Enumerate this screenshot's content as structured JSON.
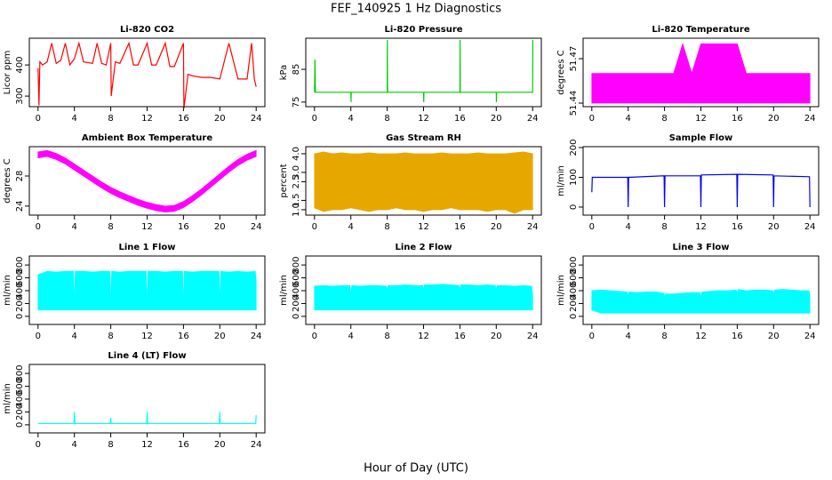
{
  "title": "FEF_140925 1 Hz Diagnostics",
  "xlabel": "Hour of Day (UTC)",
  "chart_data": [
    {
      "type": "line",
      "title": "Li-820 CO2",
      "ylabel": "Licor ppm",
      "xlim": [
        -0.96,
        24.96
      ],
      "xticks": [
        0,
        4,
        8,
        12,
        16,
        20,
        24
      ],
      "ylim": [
        266,
        486
      ],
      "yticks": [
        300,
        400
      ],
      "x": [
        0,
        0.1,
        0.2,
        0.5,
        1,
        1.5,
        2,
        2.5,
        3,
        3.5,
        4,
        4.5,
        5,
        6,
        6.5,
        7,
        7.5,
        8,
        8.05,
        8.5,
        9,
        10,
        10.5,
        11,
        12,
        12.5,
        13,
        14,
        14.5,
        15,
        16,
        16.05,
        16.5,
        17,
        18,
        19,
        20,
        21,
        22,
        23,
        23.5,
        23.8,
        24
      ],
      "series": [
        {
          "color": "#ff0000",
          "values": [
            390,
            270,
            410,
            400,
            410,
            470,
            405,
            415,
            470,
            400,
            420,
            470,
            410,
            405,
            470,
            405,
            400,
            470,
            300,
            410,
            405,
            470,
            400,
            400,
            470,
            400,
            400,
            470,
            395,
            395,
            470,
            260,
            370,
            365,
            360,
            360,
            355,
            470,
            355,
            355,
            470,
            355,
            330
          ]
        }
      ]
    },
    {
      "type": "line",
      "title": "Li-820 Pressure",
      "ylabel": "kPa",
      "xlim": [
        -0.96,
        24.96
      ],
      "xticks": [
        0,
        4,
        8,
        12,
        16,
        20,
        24
      ],
      "ylim": [
        73.6,
        94.5
      ],
      "yticks": [
        75,
        85
      ],
      "x": [
        0,
        0.05,
        0.1,
        1,
        4,
        4.02,
        4.04,
        8,
        8.02,
        8.04,
        12,
        12.02,
        12.04,
        16,
        16.02,
        16.04,
        20,
        20.02,
        20.04,
        24,
        24.02
      ],
      "series": [
        {
          "color": "#00cc00",
          "values": [
            78,
            88,
            78,
            78,
            78,
            75,
            78,
            78,
            94,
            78,
            78,
            75,
            78,
            78,
            94,
            78,
            78,
            75,
            78,
            78,
            94
          ]
        }
      ]
    },
    {
      "type": "band",
      "title": "Li-820 Temperature",
      "ylabel": "degrees C",
      "xlim": [
        -0.96,
        24.96
      ],
      "xticks": [
        0,
        4,
        8,
        12,
        16,
        20,
        24
      ],
      "ylim": [
        51.4376,
        51.4838
      ],
      "yticks": [
        51.44,
        51.47
      ],
      "x": [
        0,
        1,
        2,
        3,
        4,
        5,
        6,
        7,
        8,
        9,
        10,
        11,
        12,
        13,
        14,
        15,
        16,
        17,
        18,
        19,
        20,
        21,
        22,
        23,
        24
      ],
      "series": [
        {
          "color": "#ff00ff",
          "low": [
            51.44,
            51.44,
            51.44,
            51.44,
            51.44,
            51.44,
            51.44,
            51.44,
            51.44,
            51.44,
            51.44,
            51.44,
            51.44,
            51.44,
            51.44,
            51.44,
            51.44,
            51.44,
            51.44,
            51.44,
            51.44,
            51.44,
            51.44,
            51.44,
            51.44
          ],
          "high": [
            51.46,
            51.46,
            51.46,
            51.46,
            51.46,
            51.46,
            51.46,
            51.46,
            51.46,
            51.46,
            51.48,
            51.46,
            51.48,
            51.48,
            51.48,
            51.48,
            51.48,
            51.46,
            51.46,
            51.46,
            51.46,
            51.46,
            51.46,
            51.46,
            51.46
          ]
        }
      ]
    },
    {
      "type": "band",
      "title": "Ambient Box Temperature",
      "ylabel": "degrees C",
      "xlim": [
        -0.96,
        24.96
      ],
      "xticks": [
        0,
        4,
        8,
        12,
        16,
        20,
        24
      ],
      "ylim": [
        22.8,
        31.9
      ],
      "yticks": [
        24,
        28
      ],
      "x": [
        0,
        1,
        2,
        3,
        4,
        5,
        6,
        7,
        8,
        9,
        10,
        11,
        12,
        13,
        14,
        15,
        16,
        17,
        18,
        19,
        20,
        21,
        22,
        23,
        24
      ],
      "series": [
        {
          "color": "#ff00ff",
          "low": [
            30.4,
            30.6,
            30.2,
            29.6,
            28.8,
            28,
            27.2,
            26.4,
            25.7,
            25.1,
            24.6,
            24.1,
            23.7,
            23.4,
            23.2,
            23.3,
            23.8,
            24.6,
            25.5,
            26.5,
            27.5,
            28.5,
            29.4,
            30.1,
            30.6
          ],
          "high": [
            31.2,
            31.4,
            31,
            30.4,
            29.6,
            28.8,
            28,
            27.2,
            26.5,
            25.9,
            25.4,
            24.9,
            24.5,
            24.2,
            24,
            24.1,
            24.6,
            25.4,
            26.3,
            27.3,
            28.3,
            29.3,
            30.2,
            30.9,
            31.4
          ]
        }
      ]
    },
    {
      "type": "band",
      "title": "Gas Stream RH",
      "ylabel": "percent",
      "xlim": [
        -0.96,
        24.96
      ],
      "xticks": [
        0,
        4,
        8,
        12,
        16,
        20,
        24
      ],
      "ylim": [
        0.71,
        4.38
      ],
      "yticks": [
        {
          "value": 1,
          "label": "1.0"
        },
        {
          "value": 1.5,
          "label": "1.5"
        },
        {
          "value": 2.5,
          "label": "2.5"
        },
        {
          "value": 3,
          "label": "3.0"
        },
        {
          "value": 4,
          "label": "4.0"
        }
      ],
      "x": [
        0,
        1,
        2,
        3,
        4,
        5,
        6,
        7,
        8,
        9,
        10,
        11,
        12,
        13,
        14,
        15,
        16,
        17,
        18,
        19,
        20,
        21,
        22,
        23,
        24
      ],
      "series": [
        {
          "color": "#e6a800",
          "low": [
            1.1,
            0.9,
            1.0,
            1.0,
            1.1,
            1.0,
            0.9,
            1.0,
            1.0,
            1.1,
            1.0,
            1.0,
            0.9,
            1.0,
            1.0,
            1.1,
            1.0,
            1.0,
            1.0,
            0.9,
            1.0,
            1.0,
            0.8,
            1.0,
            1.0
          ],
          "high": [
            4.0,
            4.1,
            4.0,
            4.05,
            4.0,
            4.0,
            4.05,
            4.0,
            4.0,
            4.0,
            4.05,
            4.0,
            4.0,
            4.0,
            4.05,
            4.0,
            4.0,
            4.0,
            4.05,
            4.0,
            4.0,
            4.0,
            4.05,
            4.1,
            4.0
          ]
        }
      ]
    },
    {
      "type": "line",
      "title": "Sample Flow",
      "ylabel": "ml/min",
      "xlim": [
        -0.96,
        24.96
      ],
      "xticks": [
        0,
        4,
        8,
        12,
        16,
        20,
        24
      ],
      "ylim": [
        -27,
        203
      ],
      "yticks": [
        0,
        100,
        200
      ],
      "x": [
        0,
        0.05,
        0.1,
        1,
        3.95,
        4,
        4.05,
        7.95,
        8,
        8.05,
        11.95,
        12,
        12.05,
        15.95,
        16,
        16.05,
        19.95,
        20,
        20.05,
        23.95,
        24
      ],
      "series": [
        {
          "color": "#0000ff",
          "values": [
            50,
            100,
            100,
            100,
            100,
            0,
            100,
            105,
            0,
            105,
            105,
            0,
            108,
            110,
            0,
            110,
            108,
            0,
            105,
            102,
            0
          ]
        }
      ]
    },
    {
      "type": "band",
      "title": "Line 1 Flow",
      "ylabel": "ml/min",
      "xlim": [
        -0.96,
        24.96
      ],
      "xticks": [
        0,
        4,
        8,
        12,
        16,
        20,
        24
      ],
      "ylim": [
        -126,
        940
      ],
      "yticks": [
        0,
        200,
        400,
        600,
        800
      ],
      "x": [
        0,
        1,
        2,
        3,
        3.9,
        4,
        4.1,
        5,
        6,
        7,
        7.9,
        8,
        8.1,
        9,
        10,
        11,
        11.9,
        12,
        12.1,
        13,
        14,
        15,
        15.9,
        16,
        16.1,
        17,
        18,
        19,
        19.9,
        20,
        20.1,
        21,
        22,
        23,
        23.9,
        24
      ],
      "series": [
        {
          "color": "#00ffff",
          "low": [
            100,
            100,
            100,
            100,
            100,
            100,
            100,
            100,
            100,
            100,
            100,
            100,
            100,
            100,
            100,
            100,
            100,
            100,
            100,
            100,
            100,
            100,
            100,
            100,
            100,
            100,
            100,
            100,
            100,
            100,
            100,
            100,
            100,
            100,
            100,
            100
          ],
          "high": [
            650,
            700,
            690,
            700,
            700,
            100,
            700,
            700,
            690,
            700,
            700,
            100,
            700,
            690,
            700,
            700,
            700,
            100,
            700,
            700,
            690,
            700,
            700,
            100,
            700,
            690,
            700,
            700,
            700,
            100,
            700,
            690,
            700,
            690,
            700,
            550
          ]
        }
      ]
    },
    {
      "type": "band",
      "title": "Line 2 Flow",
      "ylabel": "ml/min",
      "xlim": [
        -0.96,
        24.96
      ],
      "xticks": [
        0,
        4,
        8,
        12,
        16,
        20,
        24
      ],
      "ylim": [
        -126,
        940
      ],
      "yticks": [
        0,
        200,
        400,
        600,
        800
      ],
      "x": [
        0,
        1,
        2,
        3,
        3.9,
        4,
        4.1,
        5,
        6,
        7,
        7.9,
        8,
        8.1,
        9,
        10,
        11,
        11.9,
        12,
        12.1,
        13,
        14,
        15,
        15.9,
        16,
        16.1,
        17,
        18,
        19,
        19.9,
        20,
        20.1,
        21,
        22,
        23,
        23.9,
        24
      ],
      "series": [
        {
          "color": "#00ffff",
          "low": [
            100,
            100,
            100,
            100,
            100,
            100,
            100,
            100,
            100,
            100,
            100,
            100,
            100,
            100,
            100,
            100,
            100,
            100,
            100,
            100,
            100,
            100,
            100,
            100,
            100,
            100,
            100,
            100,
            100,
            100,
            100,
            100,
            100,
            100,
            100,
            100
          ],
          "high": [
            470,
            480,
            470,
            480,
            480,
            300,
            480,
            470,
            480,
            480,
            470,
            400,
            480,
            480,
            490,
            480,
            480,
            400,
            490,
            490,
            500,
            490,
            480,
            400,
            490,
            490,
            480,
            490,
            480,
            400,
            480,
            480,
            470,
            480,
            470,
            330
          ]
        }
      ]
    },
    {
      "type": "band",
      "title": "Line 3 Flow",
      "ylabel": "ml/min",
      "xlim": [
        -0.96,
        24.96
      ],
      "xticks": [
        0,
        4,
        8,
        12,
        16,
        20,
        24
      ],
      "ylim": [
        -126,
        940
      ],
      "yticks": [
        0,
        200,
        400,
        600,
        800
      ],
      "x": [
        0,
        1,
        2,
        3,
        3.9,
        4,
        4.1,
        5,
        6,
        7,
        7.9,
        8,
        8.1,
        9,
        10,
        11,
        11.9,
        12,
        12.1,
        13,
        14,
        15,
        15.9,
        16,
        16.1,
        17,
        18,
        19,
        19.9,
        20,
        20.1,
        21,
        22,
        23,
        23.9,
        24
      ],
      "series": [
        {
          "color": "#00ffff",
          "low": [
            100,
            50,
            50,
            50,
            50,
            50,
            50,
            50,
            50,
            50,
            50,
            50,
            50,
            50,
            50,
            50,
            50,
            50,
            50,
            50,
            50,
            50,
            50,
            50,
            50,
            50,
            50,
            50,
            50,
            50,
            50,
            50,
            50,
            50,
            50,
            50
          ],
          "high": [
            400,
            410,
            400,
            390,
            380,
            300,
            380,
            370,
            380,
            380,
            360,
            300,
            350,
            350,
            360,
            370,
            370,
            280,
            380,
            390,
            400,
            400,
            410,
            350,
            420,
            400,
            410,
            410,
            400,
            350,
            410,
            420,
            410,
            400,
            400,
            300
          ]
        }
      ]
    },
    {
      "type": "line",
      "title": "Line 4 (LT) Flow",
      "ylabel": "ml/min",
      "xlim": [
        -0.96,
        24.96
      ],
      "xticks": [
        0,
        4,
        8,
        12,
        16,
        20,
        24
      ],
      "ylim": [
        -126,
        940
      ],
      "yticks": [
        0,
        200,
        400,
        600,
        800
      ],
      "x": [
        0,
        3.95,
        4,
        4.05,
        7.95,
        8,
        8.05,
        11.95,
        12,
        12.05,
        19.95,
        20,
        20.05,
        23.95,
        24
      ],
      "series": [
        {
          "color": "#00ffff",
          "values": [
            20,
            20,
            200,
            20,
            20,
            110,
            20,
            20,
            200,
            20,
            20,
            200,
            20,
            20,
            150
          ]
        }
      ]
    }
  ]
}
